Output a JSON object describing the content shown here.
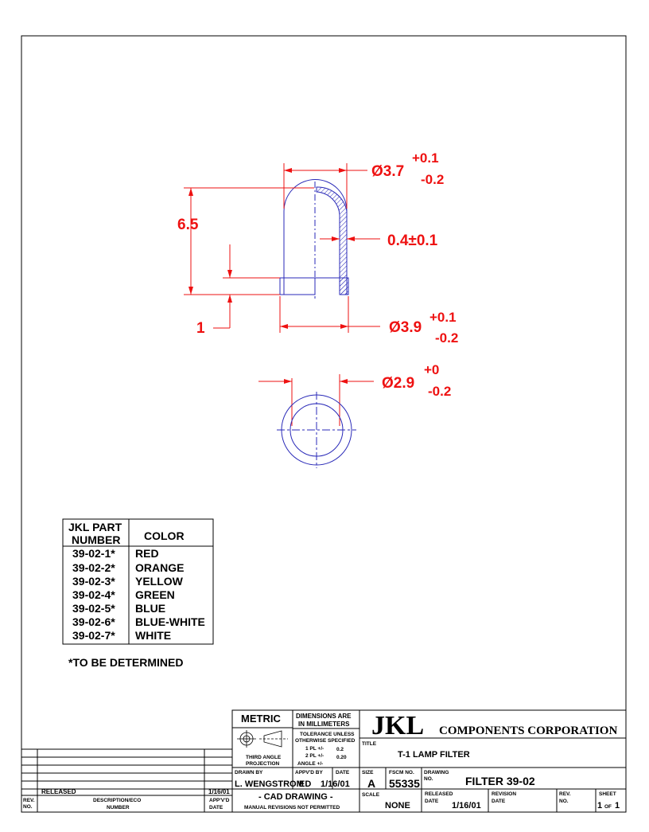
{
  "dimensions": {
    "outer_dia": {
      "value": "Ø3.7",
      "tol_plus": "+0.1",
      "tol_minus": "-0.2"
    },
    "height": "6.5",
    "wall": "0.4±0.1",
    "rim": "1",
    "base_dia": {
      "value": "Ø3.9",
      "tol_plus": "+0.1",
      "tol_minus": "-0.2"
    },
    "inner_dia": {
      "value": "Ø2.9",
      "tol_plus": "+0",
      "tol_minus": "-0.2"
    }
  },
  "parts_table": {
    "headers": {
      "part_line1": "JKL PART",
      "part_line2": "NUMBER",
      "color": "COLOR"
    },
    "rows": [
      {
        "part": "39-02-1*",
        "color": "RED"
      },
      {
        "part": "39-02-2*",
        "color": "ORANGE"
      },
      {
        "part": "39-02-3*",
        "color": "YELLOW"
      },
      {
        "part": "39-02-4*",
        "color": "GREEN"
      },
      {
        "part": "39-02-5*",
        "color": "BLUE"
      },
      {
        "part": "39-02-6*",
        "color": "BLUE-WHITE"
      },
      {
        "part": "39-02-7*",
        "color": "WHITE"
      }
    ]
  },
  "footnote": "*TO BE DETERMINED",
  "title_block": {
    "units": "METRIC",
    "dims_note_line1": "DIMENSIONS ARE",
    "dims_note_line2": "IN MILLIMETERS",
    "tol_line1": "TOLERANCE UNLESS",
    "tol_line2": "OTHERWISE SPECIFIED",
    "tol_1pl_label": "1 PL +/-",
    "tol_1pl_value": "0.2",
    "tol_2pl_label": "2 PL +/-",
    "tol_2pl_value": "0.20",
    "tol_angle_label": "ANGLE +/-",
    "projection_line1": "THIRD ANGLE",
    "projection_line2": "PROJECTION",
    "logo_mark": "JKL",
    "company_name": "COMPONENTS CORPORATION",
    "title_label": "TITLE",
    "title": "T-1 LAMP FILTER",
    "drawn_by_label": "DRAWN BY",
    "drawn_by": "L. WENGSTROM",
    "appvd_by_label": "APPV'D BY",
    "appvd_by": "ED",
    "date_label": "DATE",
    "date": "1/16/01",
    "size_label": "SIZE",
    "size": "A",
    "fscm_label": "FSCM NO.",
    "fscm": "55335",
    "drawing_no_label_1": "DRAWING",
    "drawing_no_label_2": "NO.",
    "drawing_no": "FILTER 39-02",
    "cad_note": "- CAD DRAWING -",
    "manual_note": "MANUAL REVISIONS NOT PERMITTED",
    "scale_label": "SCALE",
    "scale": "NONE",
    "released_label_1": "RELEASED",
    "released_label_2": "DATE",
    "released_date": "1/16/01",
    "revision_label_1": "REVISION",
    "revision_label_2": "DATE",
    "rev_label_1": "REV.",
    "rev_label_2": "NO.",
    "sheet_label": "SHEET",
    "sheet_num": "1",
    "sheet_of": "OF",
    "sheet_total": "1"
  },
  "revision_block": {
    "entry_desc": "RELEASED",
    "entry_date": "1/16/01",
    "col_rev_1": "REV.",
    "col_rev_2": "NO.",
    "col_desc_1": "DESCRIPTION/ECO",
    "col_desc_2": "NUMBER",
    "col_appvd_1": "APP'V'D",
    "col_appvd_2": "DATE"
  },
  "colors": {
    "dimension": "#ee1111",
    "geometry": "#2a2ab8",
    "border": "#000000"
  }
}
